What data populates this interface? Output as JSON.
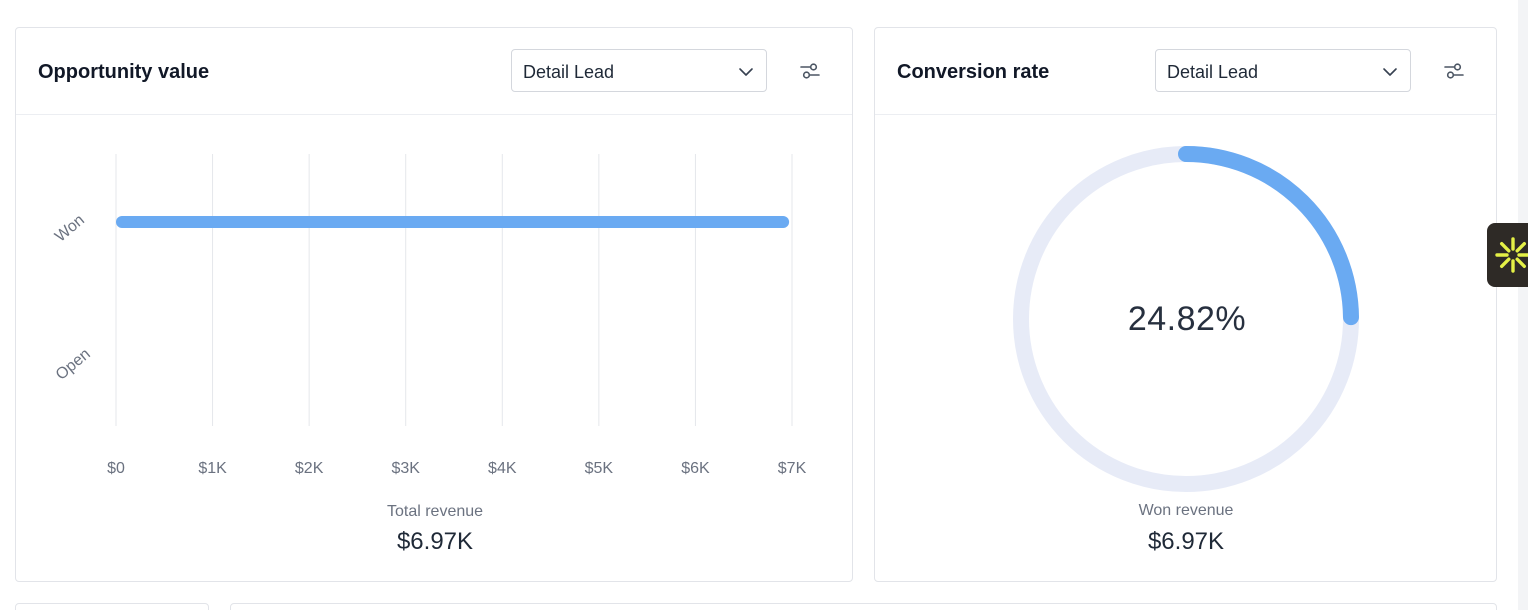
{
  "opportunity_card": {
    "title": "Opportunity value",
    "select_value": "Detail Lead",
    "summary_label": "Total revenue",
    "summary_value": "$6.97K"
  },
  "conversion_card": {
    "title": "Conversion rate",
    "select_value": "Detail Lead",
    "gauge_label": "24.82%",
    "summary_label": "Won revenue",
    "summary_value": "$6.97K"
  },
  "icons": {
    "chevron": "chevron-down-icon",
    "filter": "sliders-icon",
    "widget": "sparkle-icon"
  },
  "colors": {
    "bar": "#6aaaf2",
    "gauge_track": "#e7ebf7",
    "gauge_fill": "#6aaaf2",
    "widget_bg": "#2e2a26",
    "widget_icon": "#e4f046"
  },
  "chart_data": [
    {
      "type": "bar",
      "orientation": "horizontal",
      "categories": [
        "Won",
        "Open"
      ],
      "values": [
        6970,
        0
      ],
      "xlim": [
        0,
        7000
      ],
      "x_ticks": [
        "$0",
        "$1K",
        "$2K",
        "$3K",
        "$4K",
        "$5K",
        "$6K",
        "$7K"
      ],
      "grid": true
    },
    {
      "type": "pie",
      "variant": "radial-gauge",
      "value_percent": 24.82,
      "label": "24.82%"
    }
  ]
}
